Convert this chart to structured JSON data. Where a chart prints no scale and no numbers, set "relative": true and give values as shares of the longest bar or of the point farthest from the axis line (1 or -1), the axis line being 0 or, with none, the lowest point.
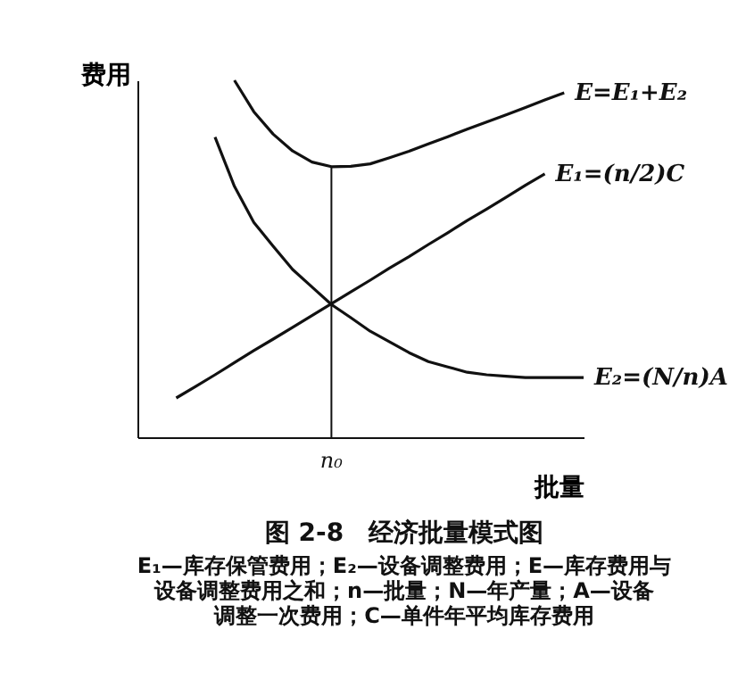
{
  "chart_data": {
    "type": "line",
    "relative": true,
    "title": "图 2-8　经济批量模式图",
    "xlabel": "批量",
    "ylabel": "费用",
    "annotations": [
      "n₀",
      "E₁—库存保管费用；E₂—设备调整费用；E—库存费用与",
      "设备调整费用之和；n—批量；N—年产量；A—设备",
      "调整一次费用；C—单件年平均库存费用"
    ],
    "categories": [
      null,
      null,
      null,
      null,
      null,
      null,
      null,
      null,
      null,
      null,
      null,
      null,
      null,
      null,
      null,
      null,
      null,
      null,
      null,
      null,
      null,
      null,
      null,
      null
    ],
    "grid": false,
    "marker": "none",
    "line_style": "solid",
    "series": [
      {
        "name": "E=E₁+E₂",
        "color": "#111111",
        "values": [
          null,
          null,
          null,
          null,
          null,
          1.0,
          0.912,
          0.849,
          0.802,
          0.771,
          0.758,
          0.759,
          0.766,
          0.783,
          0.801,
          0.822,
          0.842,
          0.863,
          0.883,
          0.903,
          0.924,
          0.945,
          0.965,
          null
        ]
      },
      {
        "name": "E₁=(n/2)C",
        "color": "#111111",
        "values": [
          null,
          null,
          0.11,
          0.142,
          0.175,
          0.209,
          0.243,
          0.275,
          0.308,
          0.341,
          0.374,
          0.407,
          0.44,
          0.474,
          0.506,
          0.54,
          0.573,
          0.607,
          0.639,
          0.672,
          0.706,
          0.738,
          null,
          null
        ]
      },
      {
        "name": "E₂=(N/n)A",
        "color": "#111111",
        "values": [
          null,
          null,
          null,
          null,
          0.841,
          0.703,
          0.602,
          0.535,
          0.47,
          0.421,
          0.372,
          0.335,
          0.297,
          0.267,
          0.237,
          0.212,
          0.197,
          0.182,
          0.175,
          0.171,
          0.167,
          0.167,
          0.167,
          0.167
        ]
      }
    ]
  }
}
